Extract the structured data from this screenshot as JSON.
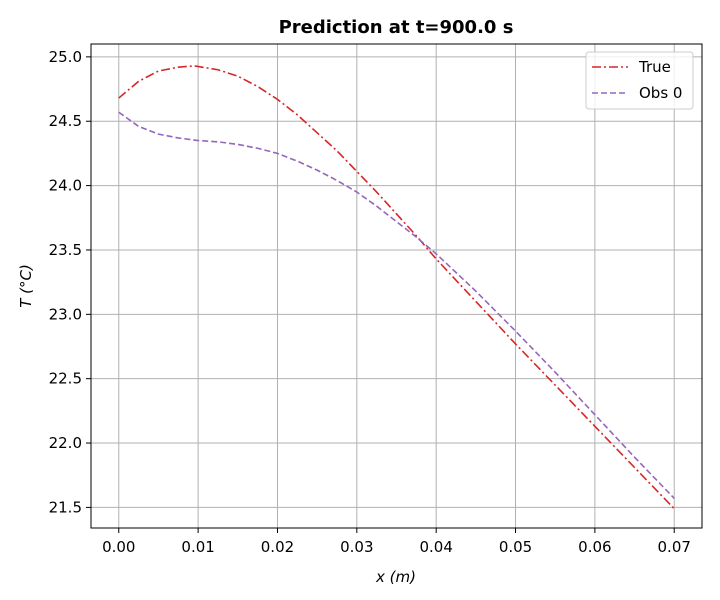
{
  "chart_data": {
    "type": "line",
    "title": "Prediction at t=900.0 s",
    "xlabel": "x (m)",
    "ylabel": "T (°C)",
    "xlim": [
      -0.0035,
      0.0735
    ],
    "ylim": [
      21.34,
      25.1
    ],
    "xticks": [
      0.0,
      0.01,
      0.02,
      0.03,
      0.04,
      0.05,
      0.06,
      0.07
    ],
    "xtick_labels": [
      "0.00",
      "0.01",
      "0.02",
      "0.03",
      "0.04",
      "0.05",
      "0.06",
      "0.07"
    ],
    "yticks": [
      21.5,
      22.0,
      22.5,
      23.0,
      23.5,
      24.0,
      24.5,
      25.0
    ],
    "ytick_labels": [
      "21.5",
      "22.0",
      "22.5",
      "23.0",
      "23.5",
      "24.0",
      "24.5",
      "25.0"
    ],
    "grid": true,
    "legend_position": "top-right",
    "series": [
      {
        "name": "True",
        "color": "#d62728",
        "dash": "dashdot",
        "x": [
          0.0,
          0.0025,
          0.005,
          0.0075,
          0.0095,
          0.0125,
          0.015,
          0.0175,
          0.02,
          0.0225,
          0.025,
          0.0275,
          0.03,
          0.0325,
          0.035,
          0.0375,
          0.04,
          0.045,
          0.05,
          0.055,
          0.06,
          0.065,
          0.07
        ],
        "y": [
          24.68,
          24.81,
          24.89,
          24.92,
          24.93,
          24.9,
          24.85,
          24.77,
          24.67,
          24.55,
          24.41,
          24.27,
          24.11,
          23.95,
          23.78,
          23.61,
          23.43,
          23.1,
          22.77,
          22.45,
          22.13,
          21.81,
          21.49
        ]
      },
      {
        "name": "Obs 0",
        "color": "#9467bd",
        "dash": "dashed",
        "x": [
          0.0,
          0.0025,
          0.005,
          0.0075,
          0.01,
          0.0125,
          0.015,
          0.0175,
          0.02,
          0.0225,
          0.025,
          0.0275,
          0.03,
          0.0325,
          0.035,
          0.0375,
          0.04,
          0.045,
          0.05,
          0.055,
          0.06,
          0.065,
          0.07
        ],
        "y": [
          24.57,
          24.46,
          24.4,
          24.37,
          24.35,
          24.34,
          24.32,
          24.29,
          24.25,
          24.19,
          24.12,
          24.04,
          23.95,
          23.84,
          23.72,
          23.6,
          23.47,
          23.18,
          22.87,
          22.55,
          22.22,
          21.89,
          21.57
        ]
      }
    ]
  }
}
